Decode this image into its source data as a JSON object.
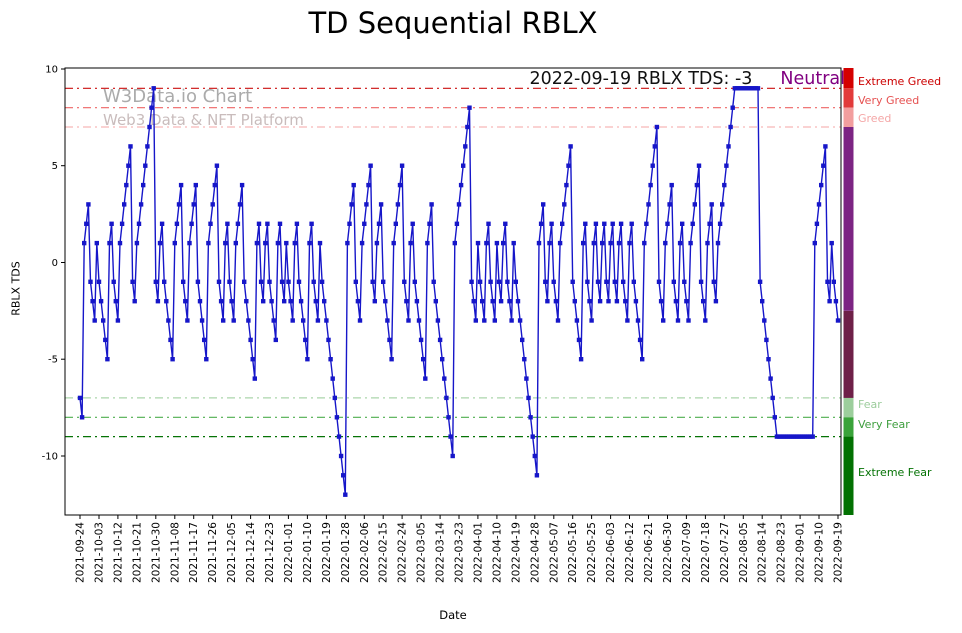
{
  "title": "TD Sequential RBLX",
  "annotation": {
    "text": "2022-09-19 RBLX TDS: -3",
    "status": "Neutral",
    "status_color": "#800080"
  },
  "watermark": {
    "line1": "W3Data.io Chart",
    "line2": "Web3 Data & NFT Platform"
  },
  "chart_data": {
    "type": "line",
    "title": "TD Sequential RBLX",
    "xlabel": "Date",
    "ylabel": "RBLX TDS",
    "ylim": [
      -13.05,
      10.05
    ],
    "y_ticks": [
      10,
      5,
      0,
      -5,
      -10
    ],
    "x_tick_interval_days": 9,
    "x_tick_labels": [
      "2021-09-24",
      "2021-10-03",
      "2021-10-12",
      "2021-10-21",
      "2021-10-30",
      "2021-11-08",
      "2021-11-17",
      "2021-11-26",
      "2021-12-05",
      "2021-12-14",
      "2021-12-23",
      "2022-01-01",
      "2022-01-10",
      "2022-01-19",
      "2022-01-28",
      "2022-02-06",
      "2022-02-15",
      "2022-02-24",
      "2022-03-05",
      "2022-03-14",
      "2022-03-23",
      "2022-04-01",
      "2022-04-10",
      "2022-04-19",
      "2022-04-28",
      "2022-05-07",
      "2022-05-16",
      "2022-05-25",
      "2022-06-03",
      "2022-06-12",
      "2022-06-21",
      "2022-06-30",
      "2022-07-09",
      "2022-07-18",
      "2022-07-27",
      "2022-08-05",
      "2022-08-14",
      "2022-08-23",
      "2022-09-01",
      "2022-09-10",
      "2022-09-19"
    ],
    "line_color": "#1616c9",
    "marker": "square",
    "values": [
      -7,
      -8,
      1,
      2,
      3,
      -1,
      -2,
      -3,
      1,
      -1,
      -2,
      -3,
      -4,
      -5,
      1,
      2,
      -1,
      -2,
      -3,
      1,
      2,
      3,
      4,
      5,
      6,
      -1,
      -2,
      1,
      2,
      3,
      4,
      5,
      6,
      7,
      8,
      9,
      -1,
      -2,
      1,
      2,
      -1,
      -2,
      -3,
      -4,
      -5,
      1,
      2,
      3,
      4,
      -1,
      -2,
      -3,
      1,
      2,
      3,
      4,
      -1,
      -2,
      -3,
      -4,
      -5,
      1,
      2,
      3,
      4,
      5,
      -1,
      -2,
      -3,
      1,
      2,
      -1,
      -2,
      -3,
      1,
      2,
      3,
      4,
      -1,
      -2,
      -3,
      -4,
      -5,
      -6,
      1,
      2,
      -1,
      -2,
      1,
      2,
      -1,
      -2,
      -3,
      -4,
      1,
      2,
      -1,
      -2,
      1,
      -1,
      -2,
      -3,
      1,
      2,
      -1,
      -2,
      -3,
      -4,
      -5,
      1,
      2,
      -1,
      -2,
      -3,
      1,
      -1,
      -2,
      -3,
      -4,
      -5,
      -6,
      -7,
      -8,
      -9,
      -10,
      -11,
      -12,
      1,
      2,
      3,
      4,
      -1,
      -2,
      -3,
      1,
      2,
      3,
      4,
      5,
      -1,
      -2,
      1,
      2,
      3,
      -1,
      -2,
      -3,
      -4,
      -5,
      1,
      2,
      3,
      4,
      5,
      -1,
      -2,
      -3,
      1,
      2,
      -1,
      -2,
      -3,
      -4,
      -5,
      -6,
      1,
      2,
      3,
      -1,
      -2,
      -3,
      -4,
      -5,
      -6,
      -7,
      -8,
      -9,
      -10,
      1,
      2,
      3,
      4,
      5,
      6,
      7,
      8,
      -1,
      -2,
      -3,
      1,
      -1,
      -2,
      -3,
      1,
      2,
      -1,
      -2,
      -3,
      1,
      -1,
      -2,
      1,
      2,
      -1,
      -2,
      -3,
      1,
      -1,
      -2,
      -3,
      -4,
      -5,
      -6,
      -7,
      -8,
      -9,
      -10,
      -11,
      1,
      2,
      3,
      -1,
      -2,
      1,
      2,
      -1,
      -2,
      -3,
      1,
      2,
      3,
      4,
      5,
      6,
      -1,
      -2,
      -3,
      -4,
      -5,
      1,
      2,
      -1,
      -2,
      -3,
      1,
      2,
      -1,
      -2,
      1,
      2,
      -1,
      -2,
      1,
      2,
      -1,
      -2,
      1,
      2,
      -1,
      -2,
      -3,
      1,
      2,
      -1,
      -2,
      -3,
      -4,
      -5,
      1,
      2,
      3,
      4,
      5,
      6,
      7,
      -1,
      -2,
      -3,
      1,
      2,
      3,
      4,
      -1,
      -2,
      -3,
      1,
      2,
      -1,
      -2,
      -3,
      1,
      2,
      3,
      4,
      5,
      -1,
      -2,
      -3,
      1,
      2,
      3,
      -1,
      -2,
      1,
      2,
      3,
      4,
      5,
      6,
      7,
      8,
      9,
      9,
      9,
      9,
      9,
      9,
      9,
      9,
      9,
      9,
      9,
      9,
      -1,
      -2,
      -3,
      -4,
      -5,
      -6,
      -7,
      -8,
      -9,
      -9,
      -9,
      -9,
      -9,
      -9,
      -9,
      -9,
      -9,
      -9,
      -9,
      -9,
      -9,
      -9,
      -9,
      -9,
      -9,
      -9,
      1,
      2,
      3,
      4,
      5,
      6,
      -1,
      -2,
      1,
      -1,
      -2,
      -3
    ],
    "thresholds": [
      {
        "value": 9,
        "color": "#cc1111"
      },
      {
        "value": 8,
        "color": "#ee6666"
      },
      {
        "value": 7,
        "color": "#f8b8b8"
      },
      {
        "value": -7,
        "color": "#abd6ab"
      },
      {
        "value": -8,
        "color": "#4faf4f"
      },
      {
        "value": -9,
        "color": "#067306"
      }
    ],
    "zones": [
      {
        "label": "Extreme Greed",
        "color": "#cc0000",
        "at_value": 9.35
      },
      {
        "label": "Very Greed",
        "color": "#e65050",
        "at_value": 8.35
      },
      {
        "label": "Greed",
        "color": "#f4a6a6",
        "at_value": 7.4
      },
      {
        "label": "Fear",
        "color": "#9ccc9c",
        "at_value": -7.35
      },
      {
        "label": "Very Fear",
        "color": "#3d9e3d",
        "at_value": -8.4
      },
      {
        "label": "Extreme Fear",
        "color": "#067306",
        "at_value": -10.9
      }
    ],
    "colorbar": [
      {
        "from": 10.05,
        "to": 9,
        "color": "#d40000"
      },
      {
        "from": 9,
        "to": 8,
        "color": "#e23b3b"
      },
      {
        "from": 8,
        "to": 7,
        "color": "#f29e9e"
      },
      {
        "from": 7,
        "to": -2.5,
        "color": "#7c2483"
      },
      {
        "from": -2.5,
        "to": -7,
        "color": "#6e2048"
      },
      {
        "from": -7,
        "to": -8,
        "color": "#9cce9c"
      },
      {
        "from": -8,
        "to": -9,
        "color": "#3aa33a"
      },
      {
        "from": -9,
        "to": -13.05,
        "color": "#027102"
      }
    ]
  }
}
